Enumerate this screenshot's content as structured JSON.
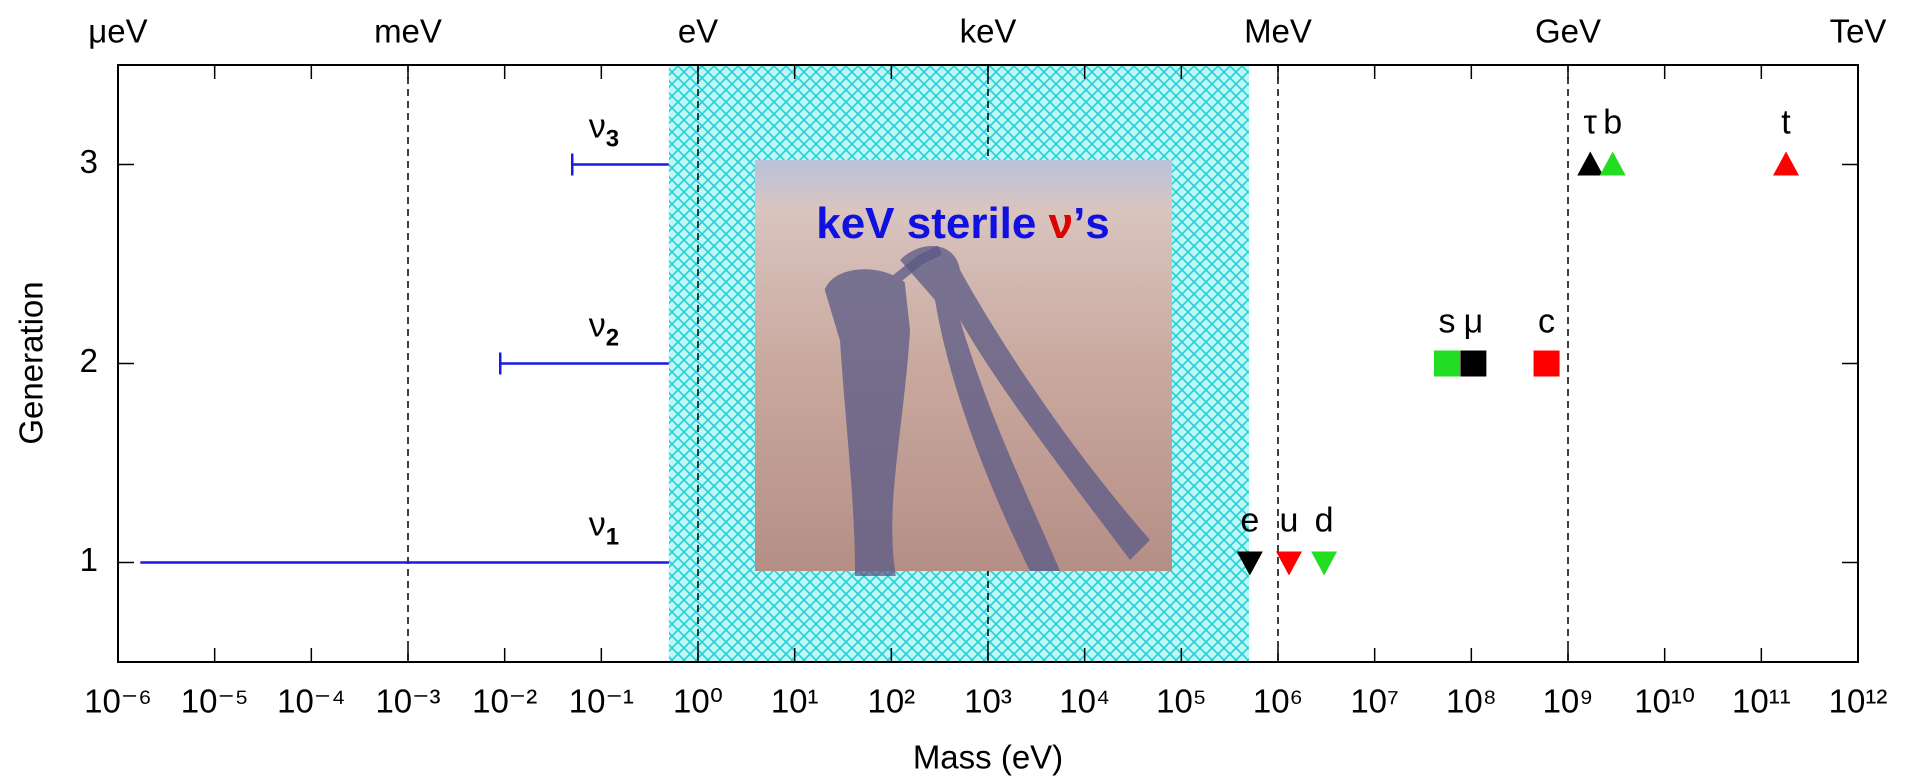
{
  "chart_data": {
    "type": "scatter",
    "x_label": "Mass  (eV)",
    "y_label": "Generation",
    "xscale": "log",
    "xlim": [
      1e-06,
      1000000000000.0
    ],
    "ylim": [
      0.5,
      3.5
    ],
    "xticks": [
      {
        "value": 1e-06,
        "label": "10⁻⁶"
      },
      {
        "value": 1e-05,
        "label": "10⁻⁵"
      },
      {
        "value": 0.0001,
        "label": "10⁻⁴"
      },
      {
        "value": 0.001,
        "label": "10⁻³"
      },
      {
        "value": 0.01,
        "label": "10⁻²"
      },
      {
        "value": 0.1,
        "label": "10⁻¹"
      },
      {
        "value": 1,
        "label": "10⁰"
      },
      {
        "value": 10,
        "label": "10¹"
      },
      {
        "value": 100,
        "label": "10²"
      },
      {
        "value": 1000,
        "label": "10³"
      },
      {
        "value": 10000,
        "label": "10⁴"
      },
      {
        "value": 100000,
        "label": "10⁵"
      },
      {
        "value": 1000000,
        "label": "10⁶"
      },
      {
        "value": 10000000,
        "label": "10⁷"
      },
      {
        "value": 100000000,
        "label": "10⁸"
      },
      {
        "value": 1000000000,
        "label": "10⁹"
      },
      {
        "value": 10000000000,
        "label": "10¹⁰"
      },
      {
        "value": 100000000000,
        "label": "10¹¹"
      },
      {
        "value": 1000000000000,
        "label": "10¹²"
      }
    ],
    "top_ticks": [
      {
        "value": 1e-06,
        "label": "μeV"
      },
      {
        "value": 0.001,
        "label": "meV"
      },
      {
        "value": 1,
        "label": "eV"
      },
      {
        "value": 1000,
        "label": "keV"
      },
      {
        "value": 1000000,
        "label": "MeV"
      },
      {
        "value": 1000000000,
        "label": "GeV"
      },
      {
        "value": 1000000000000,
        "label": "TeV"
      }
    ],
    "yticks": [
      1,
      2,
      3
    ],
    "dashed_lines": [
      0.001,
      1,
      1000,
      1000000,
      1000000000
    ],
    "band": {
      "x": [
        0.5,
        500000
      ],
      "label": [
        "keV sterile ",
        "ν",
        "’s"
      ]
    },
    "neutrinos": [
      {
        "symbol": "ν",
        "sub": "1",
        "x_start": 1.7e-06,
        "x_end": 0.5,
        "value": 1,
        "cap": false,
        "color": "#1a1ae6"
      },
      {
        "symbol": "ν",
        "sub": "2",
        "x_start": 0.009,
        "x_end": 0.5,
        "value": 2,
        "cap": true,
        "color": "#1a1ae6"
      },
      {
        "symbol": "ν",
        "sub": "3",
        "x_start": 0.05,
        "x_end": 0.5,
        "value": 3,
        "cap": true,
        "color": "#1a1ae6"
      }
    ],
    "series": [
      {
        "name": "e",
        "color": "#000000",
        "marker": "triangle-down",
        "x": [
          511000
        ],
        "values": [
          1
        ]
      },
      {
        "name": "u",
        "color": "#ff0000",
        "marker": "triangle-down",
        "x": [
          1300000
        ],
        "values": [
          1
        ]
      },
      {
        "name": "d",
        "color": "#22dd22",
        "marker": "triangle-down",
        "x": [
          3000000
        ],
        "values": [
          1
        ]
      },
      {
        "name": "s",
        "color": "#22dd22",
        "marker": "square",
        "x": [
          56000000
        ],
        "values": [
          2
        ]
      },
      {
        "name": "μ",
        "color": "#000000",
        "marker": "square",
        "x": [
          105000000
        ],
        "values": [
          2
        ]
      },
      {
        "name": "c",
        "color": "#ff0000",
        "marker": "square",
        "x": [
          600000000
        ],
        "values": [
          2
        ]
      },
      {
        "name": "τ",
        "color": "#000000",
        "marker": "triangle-up",
        "x": [
          1700000000
        ],
        "values": [
          3
        ]
      },
      {
        "name": "b",
        "color": "#22dd22",
        "marker": "triangle-up",
        "x": [
          2900000000
        ],
        "values": [
          3
        ]
      },
      {
        "name": "t",
        "color": "#ff0000",
        "marker": "triangle-up",
        "x": [
          180000000000
        ],
        "values": [
          3
        ]
      }
    ]
  }
}
